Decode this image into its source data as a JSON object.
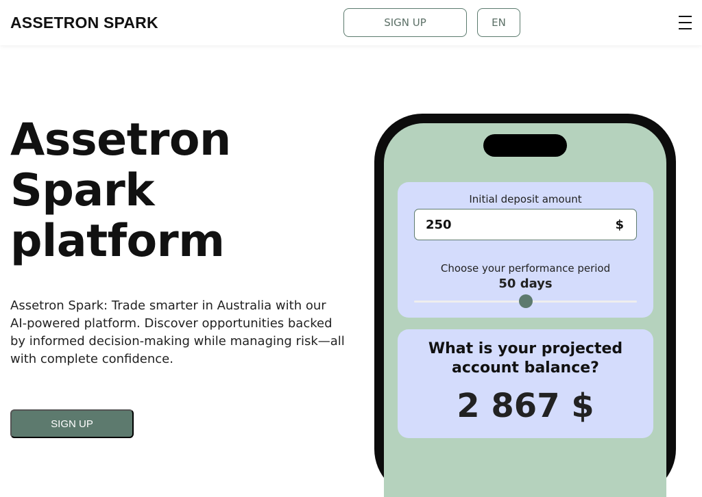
{
  "header": {
    "logo": "ASSETRON SPARK",
    "signup_label": "SIGN UP",
    "language_label": "EN",
    "menu_icon": "hamburger-icon"
  },
  "hero": {
    "title_lines": [
      "Assetron",
      "Spark",
      "platform"
    ],
    "description": "Assetron Spark: Trade smarter in Australia with our AI-powered platform. Discover opportunities backed by informed decision-making while managing risk—all with complete confidence.",
    "cta_label": "SIGN UP"
  },
  "calculator": {
    "deposit_label": "Initial deposit amount",
    "deposit_value": "250",
    "currency": "$",
    "period_label": "Choose your performance period",
    "period_value": "50 days",
    "slider_fraction": 0.5,
    "question": "What is your projected account balance?",
    "result": "2 867 $"
  },
  "colors": {
    "accent": "#5d7a6e",
    "card": "#d4dcfc",
    "screen": "#b5d2bd"
  }
}
